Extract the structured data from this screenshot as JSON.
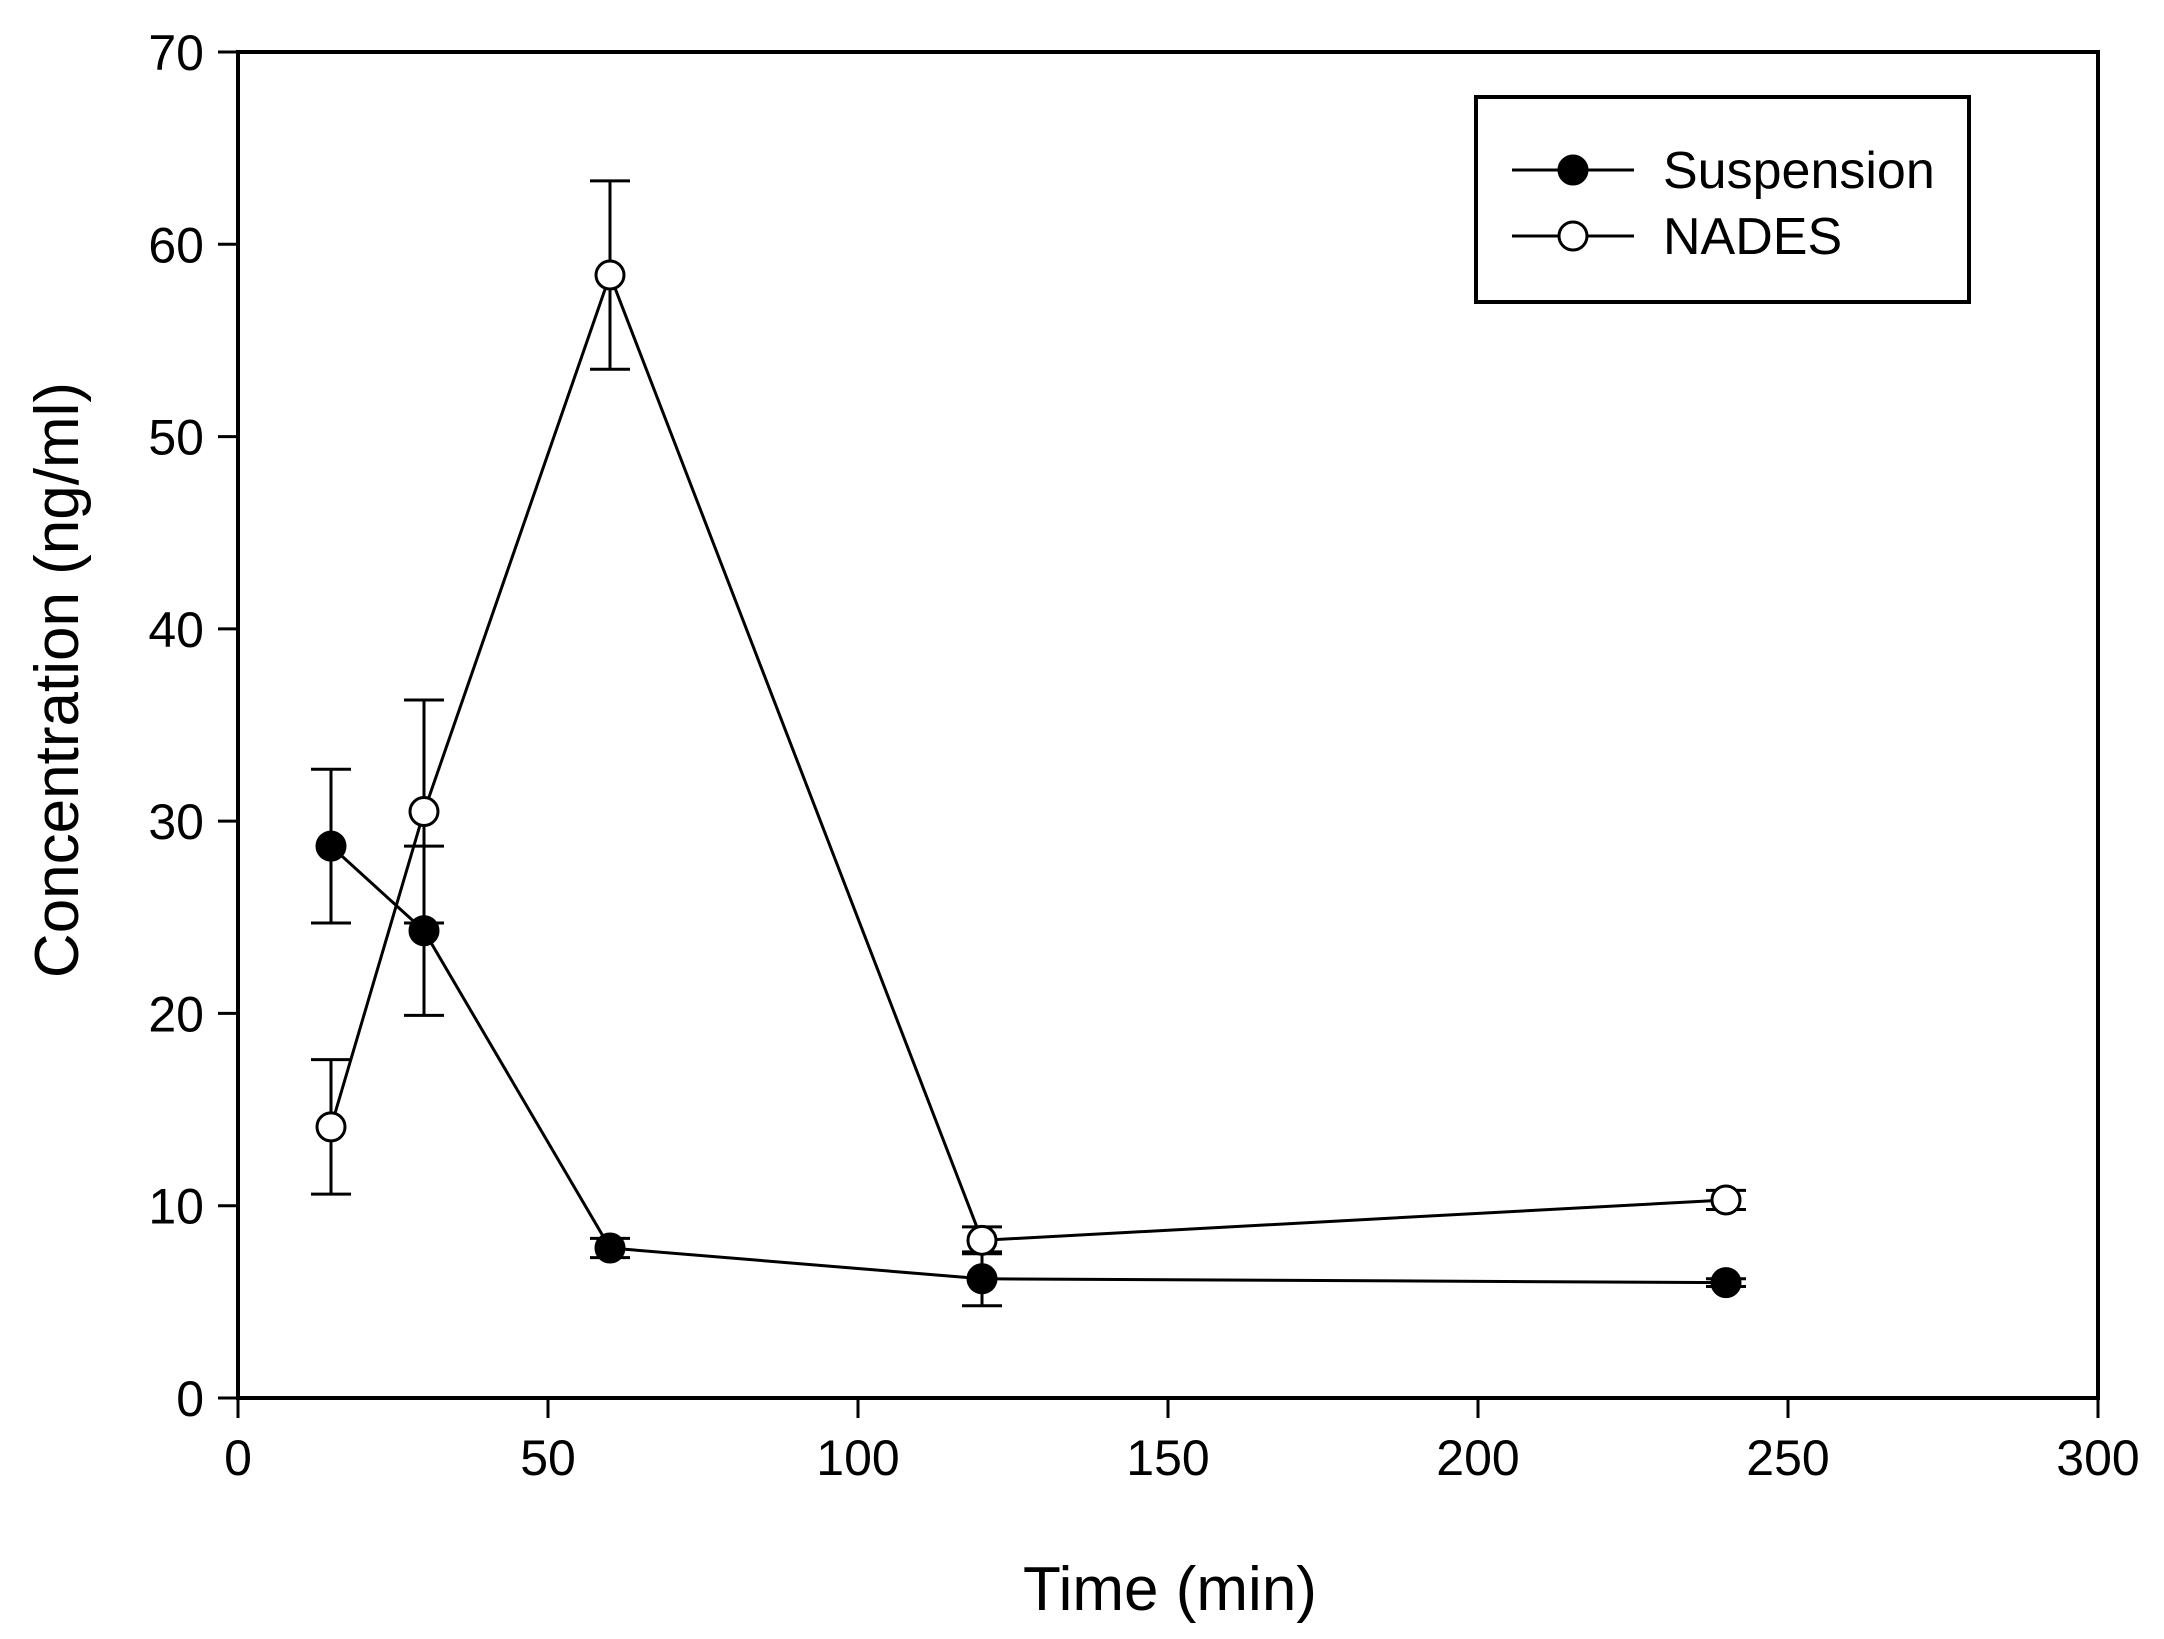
{
  "chart_data": {
    "type": "line",
    "title": "",
    "xlabel": "Time (min)",
    "ylabel": "Concentration (ng/ml)",
    "xlim": [
      0,
      300
    ],
    "ylim": [
      0,
      70
    ],
    "xticks": [
      0,
      50,
      100,
      150,
      200,
      250,
      300
    ],
    "yticks": [
      0,
      10,
      20,
      30,
      40,
      50,
      60,
      70
    ],
    "grid": false,
    "legend_position": "top-right",
    "series": [
      {
        "name": "Suspension",
        "marker": "filled-circle",
        "color": "#000000",
        "x": [
          15,
          30,
          60,
          120,
          240
        ],
        "y": [
          28.7,
          24.3,
          7.8,
          6.2,
          6.0
        ],
        "error": [
          4.0,
          4.4,
          0.5,
          1.4,
          0.2
        ]
      },
      {
        "name": "NADES",
        "marker": "open-circle",
        "color": "#000000",
        "x": [
          15,
          30,
          60,
          120,
          240
        ],
        "y": [
          14.1,
          30.5,
          58.4,
          8.2,
          10.3
        ],
        "error": [
          3.5,
          5.8,
          4.9,
          0.7,
          0.5
        ]
      }
    ]
  }
}
